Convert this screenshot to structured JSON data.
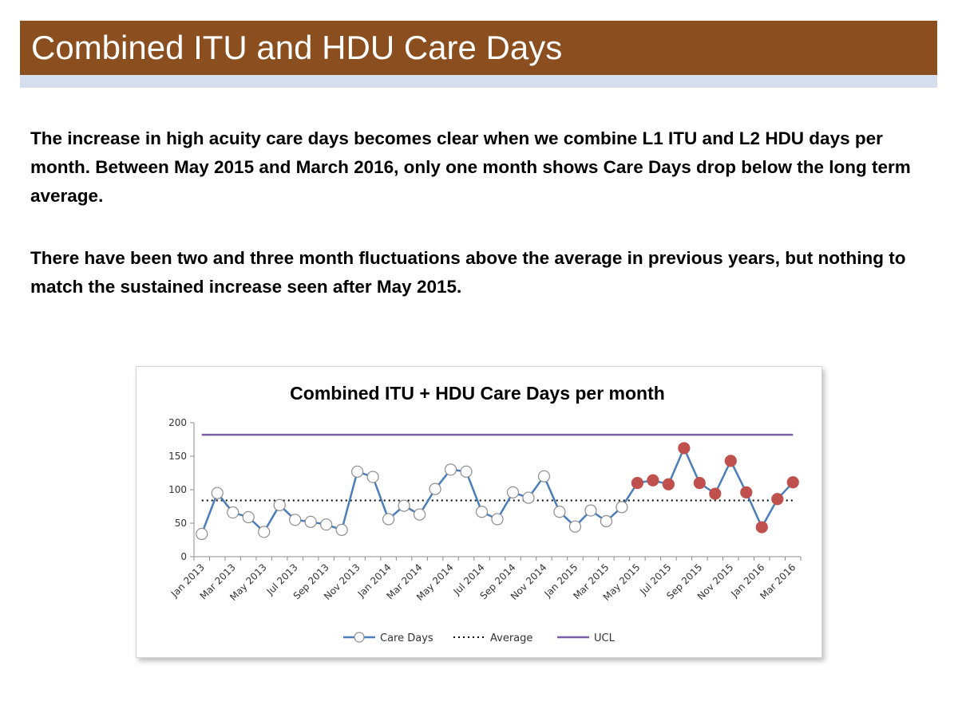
{
  "slide": {
    "title": "Combined ITU and HDU Care Days",
    "paragraph1": "The increase in high acuity care days becomes clear when we combine L1 ITU and L2 HDU days per month.  Between May 2015 and March 2016, only one month shows Care Days drop below the long term average.",
    "paragraph2": "There have been two and three month fluctuations above the average in previous years, but nothing to match the sustained increase seen after May 2015."
  },
  "colors": {
    "title_bar": "#8B4E1F",
    "care_days_line": "#4A7EBB",
    "marker_normal_fill": "#ffffff",
    "marker_highlight_fill": "#C0504D",
    "average_line": "#000000",
    "ucl_line": "#7B5EA7"
  },
  "chart_data": {
    "type": "line",
    "title": "Combined ITU + HDU Care Days per month",
    "xlabel": "",
    "ylabel": "",
    "ylim": [
      0,
      200
    ],
    "yticks": [
      0,
      50,
      100,
      150,
      200
    ],
    "x": [
      "Jan 2013",
      "Feb 2013",
      "Mar 2013",
      "Apr 2013",
      "May 2013",
      "Jun 2013",
      "Jul 2013",
      "Aug 2013",
      "Sep 2013",
      "Oct 2013",
      "Nov 2013",
      "Dec 2013",
      "Jan 2014",
      "Feb 2014",
      "Mar 2014",
      "Apr 2014",
      "May 2014",
      "Jun 2014",
      "Jul 2014",
      "Aug 2014",
      "Sep 2014",
      "Oct 2014",
      "Nov 2014",
      "Dec 2014",
      "Jan 2015",
      "Feb 2015",
      "Mar 2015",
      "Apr 2015",
      "May 2015",
      "Jun 2015",
      "Jul 2015",
      "Aug 2015",
      "Sep 2015",
      "Oct 2015",
      "Nov 2015",
      "Dec 2015",
      "Jan 2016",
      "Feb 2016",
      "Mar 2016"
    ],
    "x_tick_labels": [
      "Jan 2013",
      "",
      "Mar 2013",
      "",
      "May 2013",
      "",
      "Jul 2013",
      "",
      "Sep 2013",
      "",
      "Nov 2013",
      "",
      "Jan 2014",
      "",
      "Mar 2014",
      "",
      "May 2014",
      "",
      "Jul 2014",
      "",
      "Sep 2014",
      "",
      "Nov 2014",
      "",
      "Jan 2015",
      "",
      "Mar 2015",
      "",
      "May 2015",
      "",
      "Jul 2015",
      "",
      "Sep 2015",
      "",
      "Nov 2015",
      "",
      "Jan 2016",
      "",
      "Mar 2016"
    ],
    "series": [
      {
        "name": "Care Days",
        "values": [
          34,
          95,
          66,
          59,
          37,
          77,
          55,
          52,
          48,
          40,
          127,
          119,
          56,
          76,
          63,
          101,
          130,
          127,
          67,
          56,
          96,
          88,
          120,
          67,
          45,
          69,
          53,
          74,
          110,
          114,
          108,
          162,
          110,
          94,
          143,
          96,
          44,
          86,
          111
        ]
      },
      {
        "name": "Average",
        "value": 84
      },
      {
        "name": "UCL",
        "value": 182
      }
    ],
    "highlight_from_index": 28,
    "legend": [
      "Care Days",
      "Average",
      "UCL"
    ],
    "legend_position": "bottom",
    "grid": false
  }
}
